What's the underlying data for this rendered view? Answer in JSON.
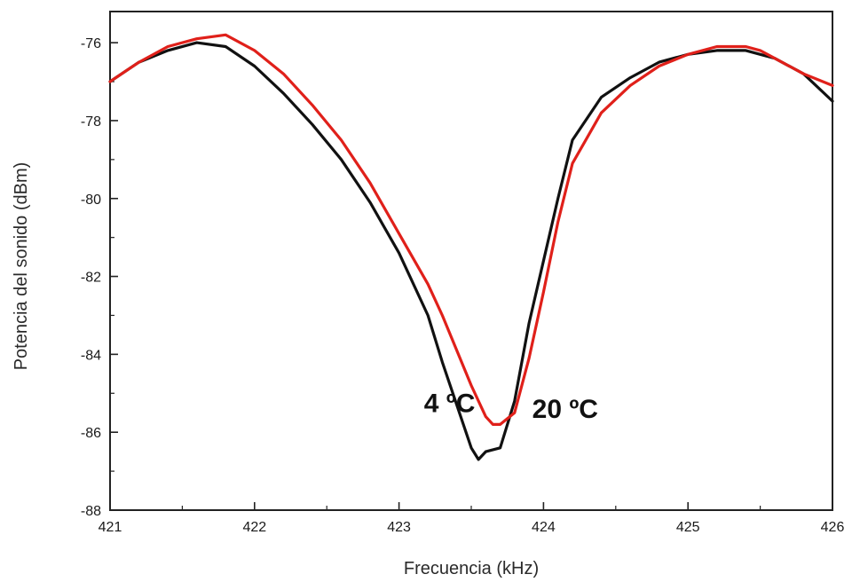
{
  "chart_data": {
    "type": "line",
    "title": "",
    "xlabel": "Frecuencia (kHz)",
    "ylabel": "Potencia del sonido (dBm)",
    "xlim": [
      421,
      426
    ],
    "ylim": [
      -88,
      -75.2
    ],
    "xticks": [
      421,
      422,
      423,
      424,
      425,
      426
    ],
    "yticks": [
      -88,
      -86,
      -84,
      -82,
      -80,
      -78,
      -76
    ],
    "xtick_labels": [
      "421",
      "422",
      "423",
      "424",
      "425",
      "426"
    ],
    "ytick_labels": [
      "-88",
      "-86",
      "-84",
      "-82",
      "-80",
      "-78",
      "-76"
    ],
    "grid": false,
    "series": [
      {
        "color": "#111111",
        "x": [
          421.0,
          421.2,
          421.4,
          421.6,
          421.8,
          422.0,
          422.2,
          422.4,
          422.6,
          422.8,
          423.0,
          423.2,
          423.3,
          423.4,
          423.5,
          423.55,
          423.6,
          423.7,
          423.8,
          423.9,
          424.0,
          424.1,
          424.2,
          424.4,
          424.6,
          424.8,
          425.0,
          425.2,
          425.4,
          425.5,
          425.6,
          425.8,
          426.0
        ],
        "y": [
          -77.0,
          -76.5,
          -76.2,
          -76.0,
          -76.1,
          -76.6,
          -77.3,
          -78.1,
          -79.0,
          -80.1,
          -81.4,
          -83.0,
          -84.2,
          -85.3,
          -86.4,
          -86.7,
          -86.5,
          -86.4,
          -85.2,
          -83.2,
          -81.6,
          -80.0,
          -78.5,
          -77.4,
          -76.9,
          -76.5,
          -76.3,
          -76.2,
          -76.2,
          -76.3,
          -76.4,
          -76.8,
          -77.5
        ]
      },
      {
        "color": "#e0201a",
        "x": [
          421.0,
          421.2,
          421.4,
          421.6,
          421.8,
          422.0,
          422.2,
          422.4,
          422.6,
          422.8,
          423.0,
          423.2,
          423.3,
          423.4,
          423.5,
          423.6,
          423.65,
          423.7,
          423.8,
          423.9,
          424.0,
          424.1,
          424.2,
          424.4,
          424.6,
          424.8,
          425.0,
          425.2,
          425.4,
          425.5,
          425.6,
          425.8,
          426.0
        ],
        "y": [
          -77.0,
          -76.5,
          -76.1,
          -75.9,
          -75.8,
          -76.2,
          -76.8,
          -77.6,
          -78.5,
          -79.6,
          -80.9,
          -82.2,
          -83.0,
          -83.9,
          -84.8,
          -85.6,
          -85.8,
          -85.8,
          -85.5,
          -84.1,
          -82.4,
          -80.6,
          -79.1,
          -77.8,
          -77.1,
          -76.6,
          -76.3,
          -76.1,
          -76.1,
          -76.2,
          -76.4,
          -76.8,
          -77.1
        ]
      }
    ],
    "annotations": [
      {
        "text": "4 ºC",
        "x": 423.35,
        "y": -85.25
      },
      {
        "text": "20 ºC",
        "x": 424.15,
        "y": -85.4
      }
    ]
  }
}
